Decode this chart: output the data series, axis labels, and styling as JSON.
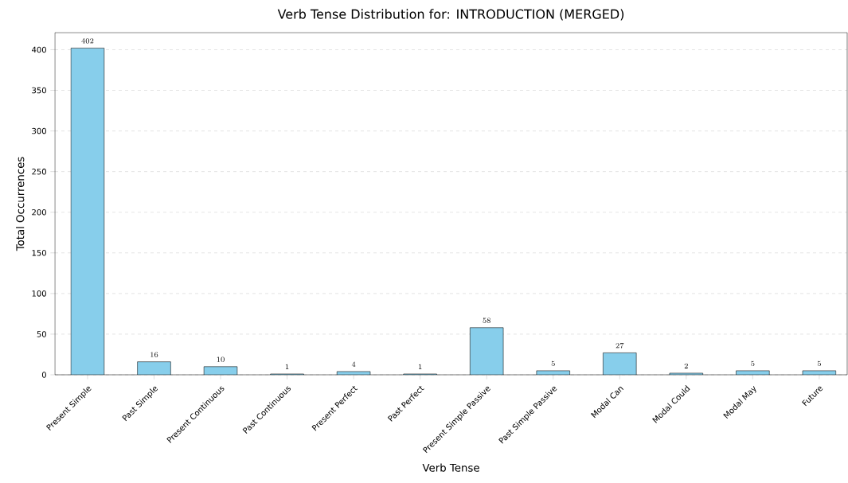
{
  "chart_data": {
    "type": "bar",
    "title": "Verb Tense Distribution for: INTRODUCTION (MERGED)",
    "xlabel": "Verb Tense",
    "ylabel": "Total Occurrences",
    "categories": [
      "Present Simple",
      "Past Simple",
      "Present Continuous",
      "Past Continuous",
      "Present Perfect",
      "Past Perfect",
      "Present Simple Passive",
      "Past Simple Passive",
      "Modal Can",
      "Modal Could",
      "Modal May",
      "Future"
    ],
    "values": [
      402,
      16,
      10,
      1,
      4,
      1,
      58,
      5,
      27,
      2,
      5,
      5
    ],
    "color": "#87ceeb",
    "ylim": [
      0,
      421
    ],
    "yticks": [
      0,
      50,
      100,
      150,
      200,
      250,
      300,
      350,
      400
    ],
    "grid": "y",
    "data_labels": true
  }
}
